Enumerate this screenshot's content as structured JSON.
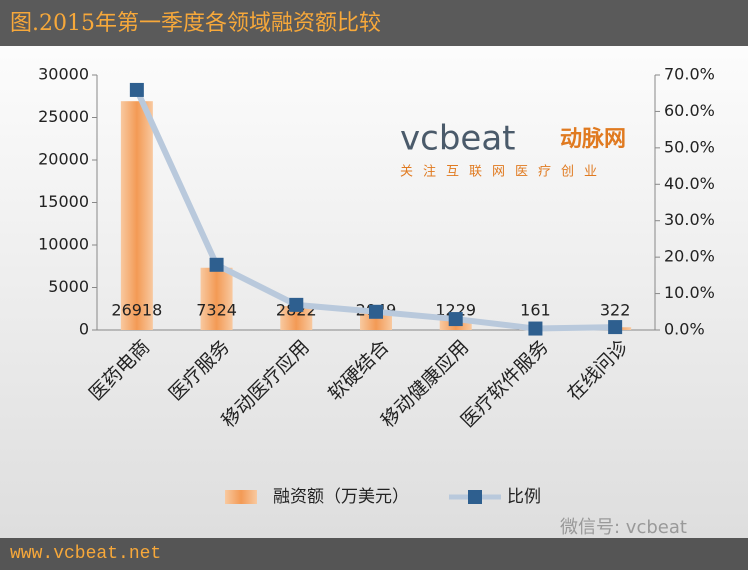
{
  "chart_data": {
    "type": "bar",
    "title": "图.2015年第一季度各领域融资额比较",
    "categories": [
      "医药电商",
      "医疗服务",
      "移动医疗应用",
      "软硬结合",
      "移动健康应用",
      "医疗软件服务",
      "在线问诊"
    ],
    "series": [
      {
        "name": "融资额（万美元）",
        "type": "bar",
        "axis": "y",
        "color": "#f4a460",
        "values": [
          26918,
          7324,
          2822,
          2049,
          1229,
          161,
          322
        ]
      },
      {
        "name": "比例",
        "type": "line",
        "axis": "y2",
        "color": "#2e5f8f",
        "line_color": "#b9c9dc",
        "values": [
          65.9,
          17.9,
          6.9,
          5.0,
          3.0,
          0.4,
          0.8
        ]
      }
    ],
    "ylim": [
      0,
      30000
    ],
    "yticks": [
      0,
      5000,
      10000,
      15000,
      20000,
      25000,
      30000
    ],
    "y2lim": [
      0,
      70
    ],
    "y2ticks": [
      {
        "value": 0,
        "label": "0.0%"
      },
      {
        "value": 10,
        "label": "10.0%"
      },
      {
        "value": 20,
        "label": "20.0%"
      },
      {
        "value": 30,
        "label": "30.0%"
      },
      {
        "value": 40,
        "label": "40.0%"
      },
      {
        "value": 50,
        "label": "50.0%"
      },
      {
        "value": 60,
        "label": "60.0%"
      },
      {
        "value": 70,
        "label": "70.0%"
      }
    ],
    "legend": "bottom",
    "annotations": [
      "vcbeat",
      "动脉网",
      "关注互联网医疗创业",
      "微信号: vcbeat",
      "www.vcbeat.net"
    ]
  }
}
